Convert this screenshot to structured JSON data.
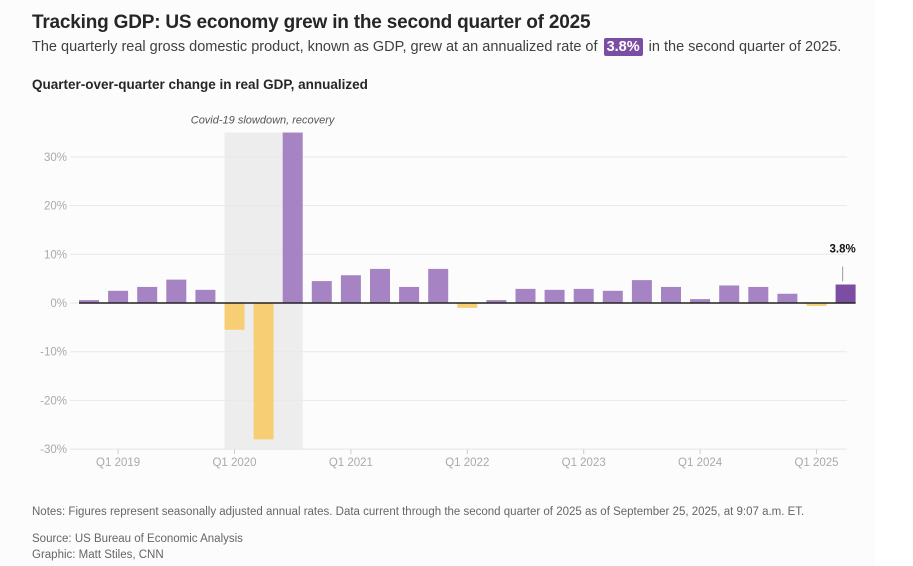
{
  "header": {
    "title": "Tracking GDP: US economy grew in the second quarter of 2025",
    "subtitle_before": "The quarterly real gross domestic product, known as GDP, grew at an annualized rate of",
    "subtitle_badge": "3.8%",
    "subtitle_after": "in the second quarter of 2025."
  },
  "footer": {
    "notes": "Notes: Figures represent seasonally adjusted annual rates. Data current through the second quarter of 2025 as of September 25, 2025, at 9:07 a.m. ET.",
    "source": "Source: US Bureau of Economic Analysis",
    "credit": "Graphic: Matt Stiles, CNN"
  },
  "colors": {
    "positive": "#a683c3",
    "negative": "#f8ce75",
    "highlight": "#7b4ea4",
    "shade": "#ededed",
    "grid": "#e8e8e8",
    "axis_text": "#aaaaaa",
    "baseline": "#222222"
  },
  "chart_data": {
    "type": "bar",
    "title": "Quarter-over-quarter change in real GDP, annualized",
    "xlabel": "",
    "ylabel": "",
    "ylim": [
      -30,
      35
    ],
    "yticks": [
      -30,
      -20,
      -10,
      0,
      10,
      20,
      30
    ],
    "ytick_labels": [
      "-30%",
      "-20%",
      "-10%",
      "0%",
      "10%",
      "20%",
      "30%"
    ],
    "grid": true,
    "categories": [
      "Q4 2018",
      "Q1 2019",
      "Q2 2019",
      "Q3 2019",
      "Q4 2019",
      "Q1 2020",
      "Q2 2020",
      "Q3 2020",
      "Q4 2020",
      "Q1 2021",
      "Q2 2021",
      "Q3 2021",
      "Q4 2021",
      "Q1 2022",
      "Q2 2022",
      "Q3 2022",
      "Q4 2022",
      "Q1 2023",
      "Q2 2023",
      "Q3 2023",
      "Q4 2023",
      "Q1 2024",
      "Q2 2024",
      "Q3 2024",
      "Q4 2024",
      "Q1 2025",
      "Q2 2025"
    ],
    "values": [
      0.6,
      2.5,
      3.3,
      4.8,
      2.7,
      -5.5,
      -28.0,
      35.0,
      4.5,
      5.7,
      7.0,
      3.3,
      7.0,
      -1.0,
      0.6,
      2.9,
      2.7,
      2.9,
      2.5,
      4.7,
      3.3,
      0.8,
      3.6,
      3.3,
      1.9,
      -0.6,
      3.8
    ],
    "xtick_labels": [
      {
        "category": "Q1 2019",
        "label": "Q1 2019"
      },
      {
        "category": "Q1 2020",
        "label": "Q1 2020"
      },
      {
        "category": "Q1 2021",
        "label": "Q1 2021"
      },
      {
        "category": "Q1 2022",
        "label": "Q1 2022"
      },
      {
        "category": "Q1 2023",
        "label": "Q1 2023"
      },
      {
        "category": "Q1 2024",
        "label": "Q1 2024"
      },
      {
        "category": "Q1 2025",
        "label": "Q1 2025"
      }
    ],
    "shaded_region": {
      "from": "Q1 2020",
      "to": "Q3 2020",
      "label": "Covid-19 slowdown, recovery"
    },
    "highlight": {
      "category": "Q2 2025",
      "label": "3.8%"
    }
  }
}
